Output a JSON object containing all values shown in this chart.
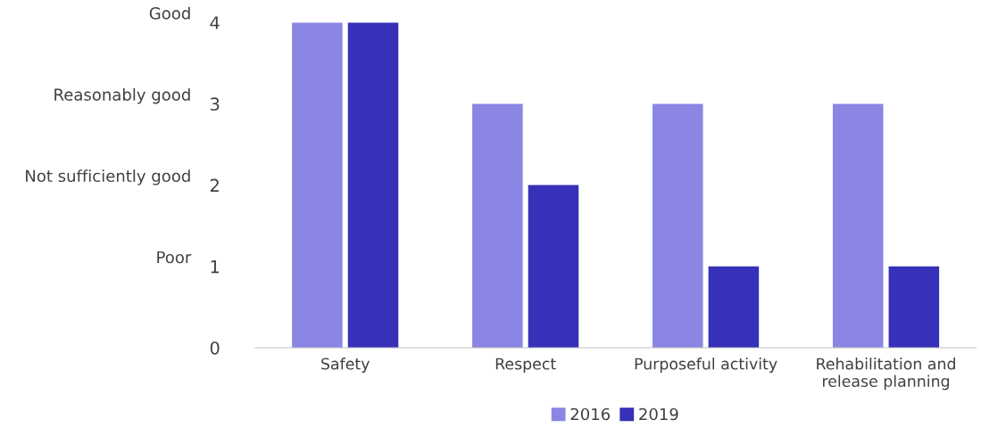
{
  "chart_data": {
    "type": "bar",
    "categories": [
      "Safety",
      "Respect",
      "Purposeful activity",
      "Rehabilitation and\nrelease planning"
    ],
    "series": [
      {
        "name": "2016",
        "color": "#8b86e3",
        "values": [
          4,
          3,
          3,
          3
        ]
      },
      {
        "name": "2019",
        "color": "#3730b8",
        "values": [
          4,
          2,
          1,
          1
        ]
      }
    ],
    "ylim": [
      0,
      4
    ],
    "yticks": [
      0,
      1,
      2,
      3,
      4
    ],
    "annotations": [
      "Good",
      "Reasonably good",
      "Not sufficiently good",
      "Poor"
    ],
    "grid": false,
    "legend": "bottom"
  }
}
